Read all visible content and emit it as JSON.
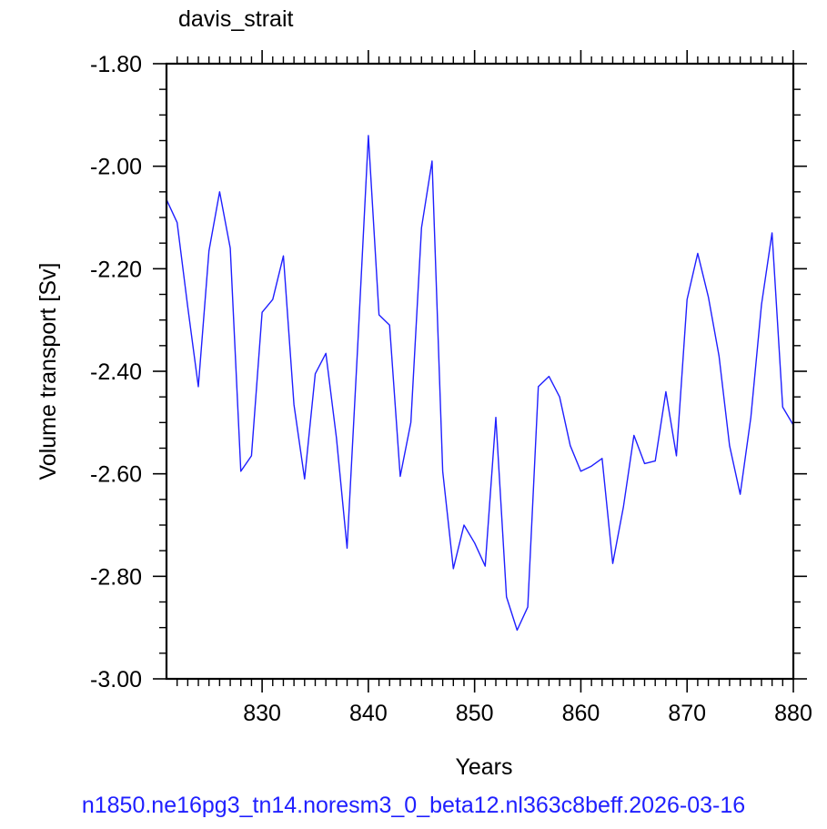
{
  "chart_data": {
    "type": "line",
    "title": "davis_strait",
    "xlabel": "Years",
    "ylabel": "Volume transport [Sv]",
    "xlim": [
      821,
      880
    ],
    "ylim": [
      -3.0,
      -1.8
    ],
    "xticks": [
      830,
      840,
      850,
      860,
      870,
      880
    ],
    "yticks": [
      -1.8,
      -2.0,
      -2.2,
      -2.4,
      -2.6,
      -2.8,
      -3.0
    ],
    "ytick_labels": [
      "-1.80",
      "-2.00",
      "-2.20",
      "-2.40",
      "-2.60",
      "-2.80",
      "-3.00"
    ],
    "line_color": "#1f1fff",
    "grid": false,
    "series": [
      {
        "x": [
          821,
          822,
          823,
          824,
          825,
          826,
          827,
          828,
          829,
          830,
          831,
          832,
          833,
          834,
          835,
          836,
          837,
          838,
          839,
          840,
          841,
          842,
          843,
          844,
          845,
          846,
          847,
          848,
          849,
          850,
          851,
          852,
          853,
          854,
          855,
          856,
          857,
          858,
          859,
          860,
          861,
          862,
          863,
          864,
          865,
          866,
          867,
          868,
          869,
          870,
          871,
          872,
          873,
          874,
          875,
          876,
          877,
          878,
          879,
          880
        ],
        "values": [
          -2.065,
          -2.11,
          -2.275,
          -2.43,
          -2.165,
          -2.05,
          -2.16,
          -2.595,
          -2.565,
          -2.285,
          -2.26,
          -2.175,
          -2.465,
          -2.61,
          -2.405,
          -2.365,
          -2.53,
          -2.745,
          -2.35,
          -1.94,
          -2.29,
          -2.31,
          -2.605,
          -2.5,
          -2.12,
          -1.99,
          -2.595,
          -2.785,
          -2.7,
          -2.735,
          -2.78,
          -2.49,
          -2.84,
          -2.905,
          -2.86,
          -2.43,
          -2.41,
          -2.45,
          -2.545,
          -2.595,
          -2.585,
          -2.57,
          -2.775,
          -2.665,
          -2.525,
          -2.58,
          -2.575,
          -2.44,
          -2.565,
          -2.26,
          -2.17,
          -2.255,
          -2.37,
          -2.545,
          -2.64,
          -2.49,
          -2.27,
          -2.13,
          -2.47,
          -2.505
        ]
      }
    ]
  },
  "footer": "n1850.ne16pg3_tn14.noresm3_0_beta12.nl363c8beff.2026-03-16"
}
